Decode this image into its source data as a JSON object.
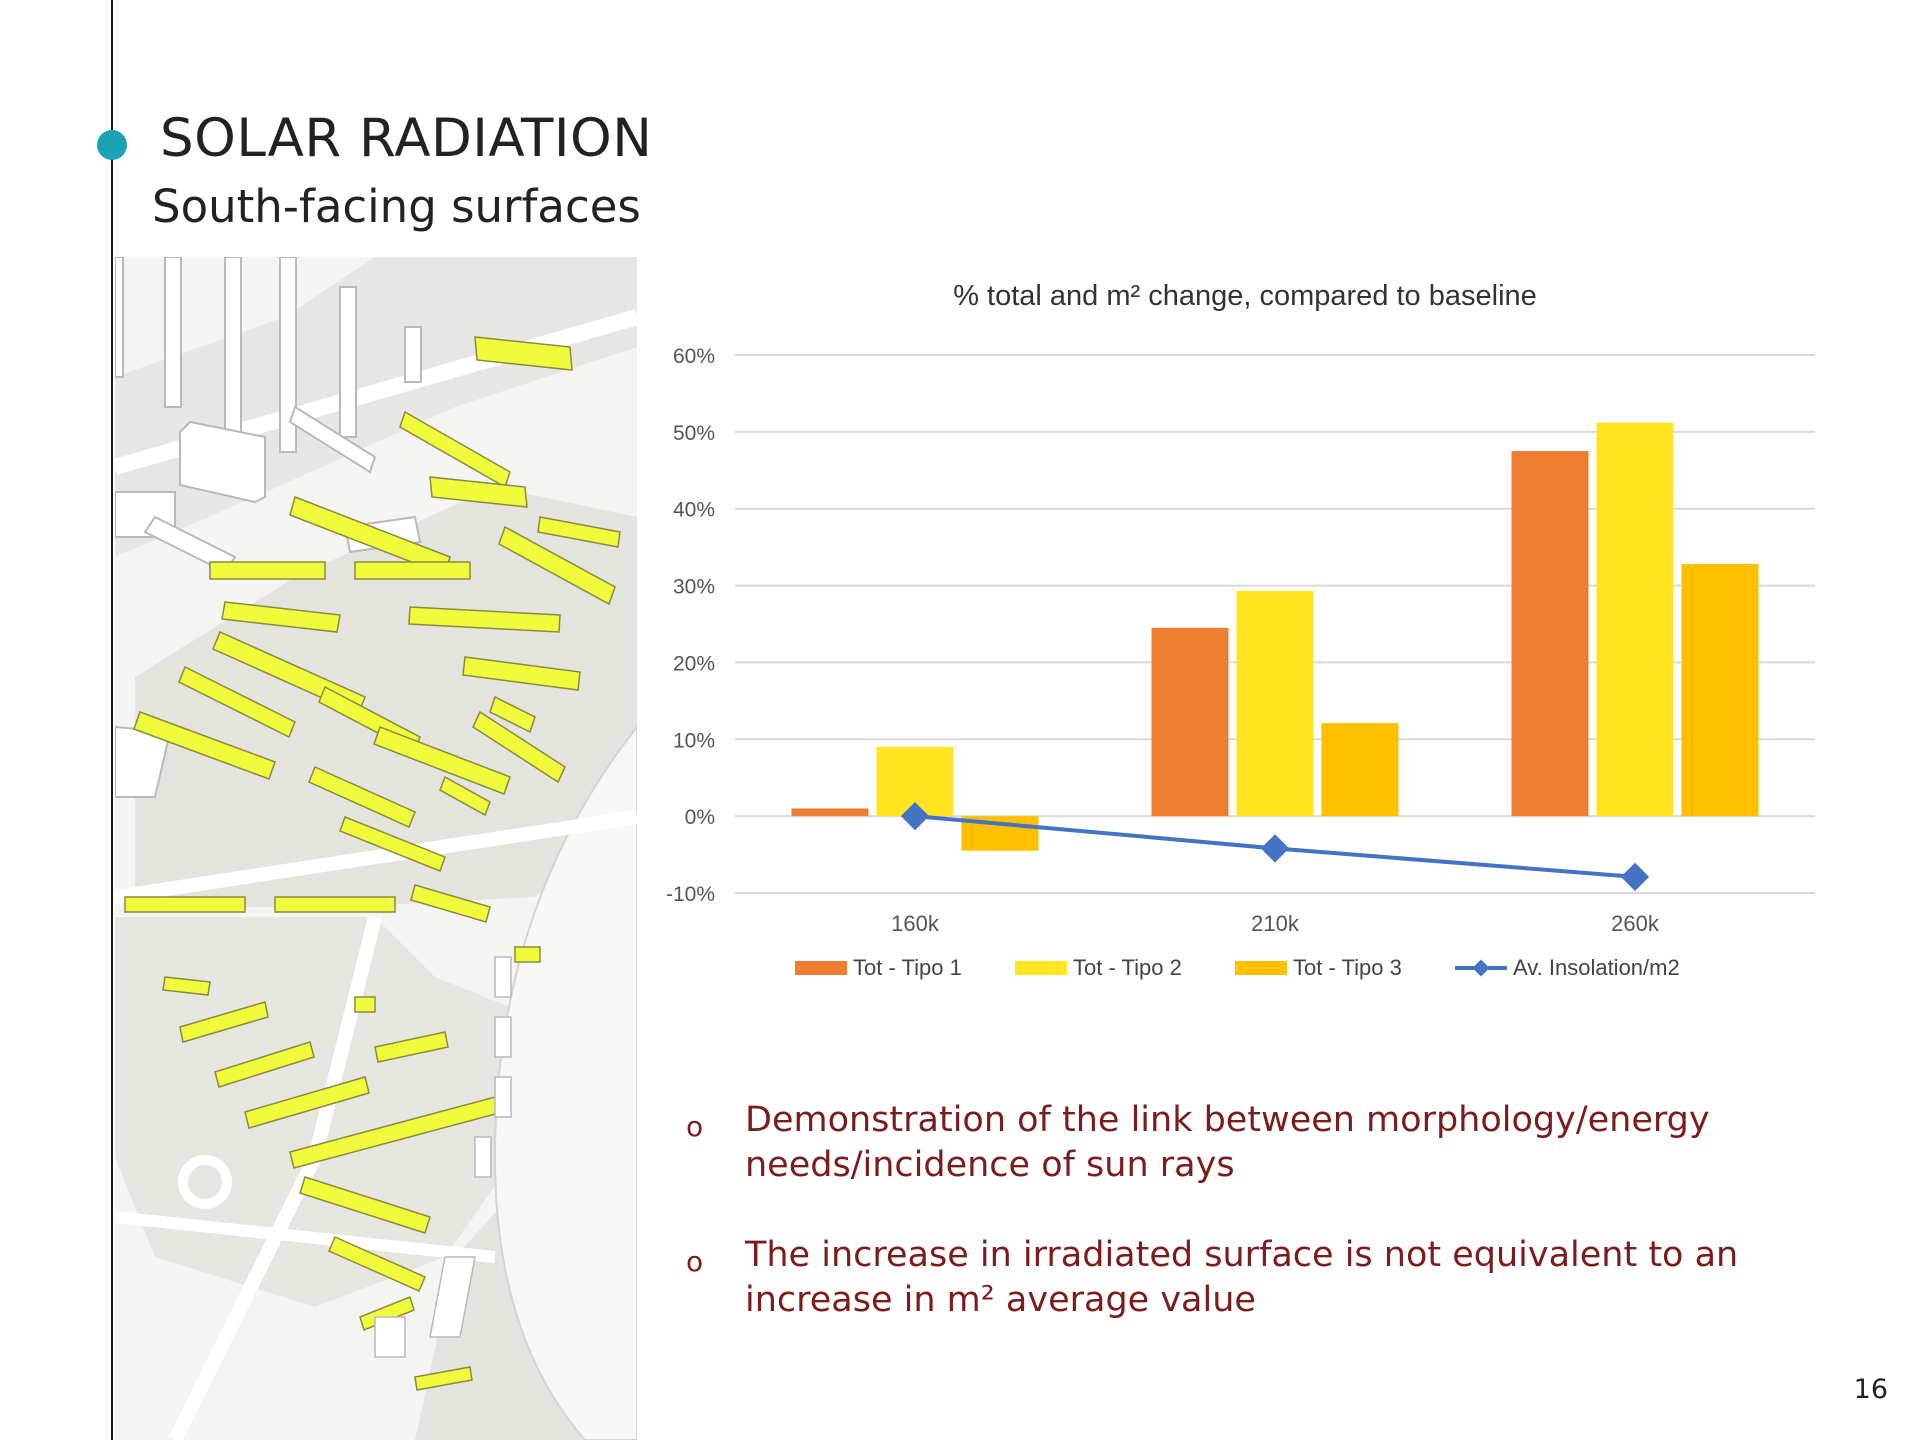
{
  "slide": {
    "title": "SOLAR RADIATION",
    "subtitle": "South-facing surfaces",
    "page_number": "16",
    "accent_color": "#1aa3b5"
  },
  "bullets": [
    {
      "marker": "o",
      "text": "Demonstration of the link between morphology/energy needs/incidence of sun rays"
    },
    {
      "marker": "o",
      "text": "The increase in irradiated surface is not equivalent to an increase in m² average value"
    }
  ],
  "map": {
    "icon": "city-blocks-3d-map"
  },
  "chart_data": {
    "type": "bar",
    "title": "% total and m² change, compared to baseline",
    "categories": [
      "160k",
      "210k",
      "260k"
    ],
    "ylim": [
      -10,
      60
    ],
    "yticks": [
      60,
      50,
      40,
      30,
      20,
      10,
      0,
      -10
    ],
    "ytick_labels": [
      "60%",
      "50%",
      "40%",
      "30%",
      "20%",
      "10%",
      "0%",
      "-10%"
    ],
    "grid": true,
    "legend_position": "bottom",
    "series": [
      {
        "name": "Tot - Tipo 1",
        "type": "bar",
        "color": "#ed7d31",
        "values": [
          1,
          24.5,
          47.5
        ]
      },
      {
        "name": "Tot - Tipo 2",
        "type": "bar",
        "color": "#ffe51f",
        "values": [
          9,
          29.3,
          51.2
        ]
      },
      {
        "name": "Tot - Tipo 3",
        "type": "bar",
        "color": "#ffc000",
        "values": [
          -4.5,
          12.1,
          32.8
        ]
      },
      {
        "name": "Av. Insolation/m2",
        "type": "line",
        "color": "#4472c4",
        "values": [
          0,
          -4.2,
          -7.9
        ]
      }
    ]
  }
}
